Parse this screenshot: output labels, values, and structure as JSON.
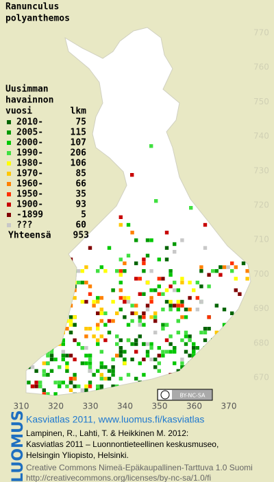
{
  "title": [
    "Ranunculus",
    "polyanthemos"
  ],
  "legend": {
    "heading": [
      "Uusimman",
      "havainnon",
      "vuosi"
    ],
    "count_heading": "lkm",
    "items": [
      {
        "label": "2010-",
        "count": 75,
        "color": "#006400"
      },
      {
        "label": "2005-",
        "count": 115,
        "color": "#009a00"
      },
      {
        "label": "2000-",
        "count": 107,
        "color": "#00c800"
      },
      {
        "label": "1990-",
        "count": 206,
        "color": "#40e040"
      },
      {
        "label": "1980-",
        "count": 106,
        "color": "#ffff00"
      },
      {
        "label": "1970-",
        "count": 85,
        "color": "#ffc800"
      },
      {
        "label": "1960-",
        "count": 66,
        "color": "#ff8000"
      },
      {
        "label": "1950-",
        "count": 35,
        "color": "#ff3000"
      },
      {
        "label": "1900-",
        "count": 93,
        "color": "#c80000"
      },
      {
        "label": "-1899",
        "count": 5,
        "color": "#800000"
      },
      {
        "label": "???",
        "count": 60,
        "color": "#c8c8c8"
      }
    ],
    "total_label": "Yhteensä",
    "total": 953
  },
  "grid": {
    "y_labels": [
      770,
      760,
      750,
      740,
      730,
      720,
      710,
      700,
      690,
      680,
      670
    ],
    "x_labels": [
      310,
      320,
      330,
      340,
      350,
      360,
      370
    ]
  },
  "license_badge": "BY-NC-SA",
  "footer": {
    "logo": "LUOMUS",
    "link": "Kasviatlas 2011, www.luomus.fi/kasviatlas",
    "citation": [
      "Lampinen, R., Lahti, T. & Heikkinen M. 2012:",
      "Kasviatlas 2011 – Luonnontieteellinen keskusmuseo,",
      "Helsingin Yliopisto, Helsinki."
    ],
    "license": [
      "Creative Commons Nimeä-Epäkaupallinen-Tarttuva 1.0 Suomi",
      "http://creativecommons.org/licenses/by-nc-sa/1.0/fi"
    ]
  }
}
